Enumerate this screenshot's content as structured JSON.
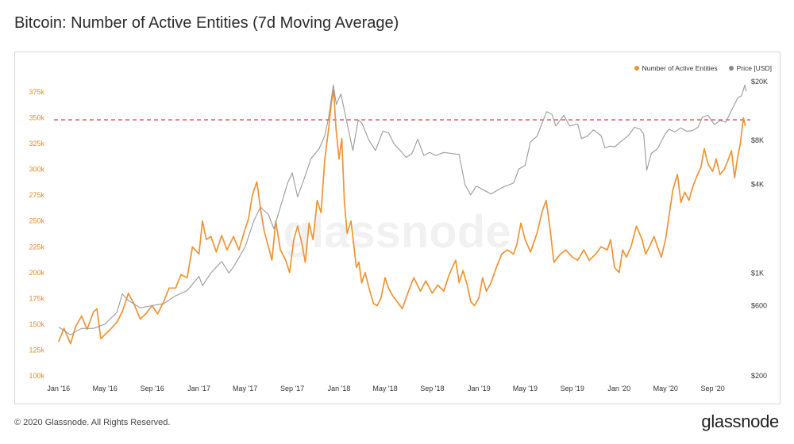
{
  "page": {
    "title": "Bitcoin: Number of Active Entities (7d Moving Average)",
    "footer": "© 2020 Glassnode. All Rights Reserved.",
    "brand": "glassnode",
    "watermark": "glassnode"
  },
  "chart_data": {
    "type": "line",
    "title": "Bitcoin: Number of Active Entities (7d Moving Average)",
    "x_ticks": [
      "Jan '16",
      "May '16",
      "Sep '16",
      "Jan '17",
      "May '17",
      "Sep '17",
      "Jan '18",
      "May '18",
      "Sep '18",
      "Jan '19",
      "May '19",
      "Sep '19",
      "Jan '20",
      "May '20",
      "Sep '20"
    ],
    "y_left": {
      "ticks": [
        "100k",
        "125k",
        "150k",
        "175k",
        "200k",
        "225k",
        "250k",
        "275k",
        "300k",
        "325k",
        "350k",
        "375k"
      ],
      "range": [
        100000,
        375000
      ],
      "color": "#e38b2c"
    },
    "y_right": {
      "scale": "log",
      "ticks": [
        "$200",
        "$600",
        "$1K",
        "$4K",
        "$8K",
        "$20K"
      ],
      "tick_values": [
        200,
        600,
        1000,
        4000,
        8000,
        20000
      ],
      "range": [
        200,
        20000
      ],
      "color": "#333333"
    },
    "reference_line": {
      "value": 348000,
      "color": "#e0263b",
      "style": "dashed"
    },
    "legend": {
      "position": "top-right"
    },
    "series": [
      {
        "name": "Number of Active Entities",
        "axis": "left",
        "color": "#f09433",
        "points": [
          [
            "2016-01-01",
            133000
          ],
          [
            "2016-01-15",
            146000
          ],
          [
            "2016-02-01",
            131000
          ],
          [
            "2016-02-15",
            148000
          ],
          [
            "2016-03-01",
            158000
          ],
          [
            "2016-03-15",
            145000
          ],
          [
            "2016-04-01",
            162000
          ],
          [
            "2016-04-10",
            165000
          ],
          [
            "2016-04-20",
            136000
          ],
          [
            "2016-05-01",
            140000
          ],
          [
            "2016-05-15",
            145000
          ],
          [
            "2016-06-01",
            152000
          ],
          [
            "2016-06-15",
            162000
          ],
          [
            "2016-07-01",
            180000
          ],
          [
            "2016-07-15",
            170000
          ],
          [
            "2016-08-01",
            155000
          ],
          [
            "2016-08-15",
            160000
          ],
          [
            "2016-09-01",
            168000
          ],
          [
            "2016-09-15",
            160000
          ],
          [
            "2016-10-01",
            172000
          ],
          [
            "2016-10-15",
            185000
          ],
          [
            "2016-11-01",
            185000
          ],
          [
            "2016-11-15",
            198000
          ],
          [
            "2016-12-01",
            195000
          ],
          [
            "2016-12-15",
            225000
          ],
          [
            "2017-01-01",
            218000
          ],
          [
            "2017-01-10",
            250000
          ],
          [
            "2017-01-20",
            232000
          ],
          [
            "2017-02-01",
            235000
          ],
          [
            "2017-02-15",
            220000
          ],
          [
            "2017-03-01",
            236000
          ],
          [
            "2017-03-15",
            222000
          ],
          [
            "2017-04-01",
            235000
          ],
          [
            "2017-04-15",
            222000
          ],
          [
            "2017-05-01",
            242000
          ],
          [
            "2017-05-10",
            252000
          ],
          [
            "2017-05-20",
            275000
          ],
          [
            "2017-06-01",
            288000
          ],
          [
            "2017-06-10",
            262000
          ],
          [
            "2017-06-20",
            240000
          ],
          [
            "2017-07-01",
            225000
          ],
          [
            "2017-07-10",
            212000
          ],
          [
            "2017-07-20",
            250000
          ],
          [
            "2017-08-01",
            222000
          ],
          [
            "2017-08-15",
            212000
          ],
          [
            "2017-08-25",
            200000
          ],
          [
            "2017-09-05",
            232000
          ],
          [
            "2017-09-15",
            245000
          ],
          [
            "2017-09-25",
            230000
          ],
          [
            "2017-10-05",
            210000
          ],
          [
            "2017-10-15",
            248000
          ],
          [
            "2017-10-25",
            232000
          ],
          [
            "2017-11-05",
            270000
          ],
          [
            "2017-11-15",
            258000
          ],
          [
            "2017-11-25",
            310000
          ],
          [
            "2017-12-05",
            340000
          ],
          [
            "2017-12-12",
            365000
          ],
          [
            "2017-12-18",
            377000
          ],
          [
            "2017-12-24",
            340000
          ],
          [
            "2018-01-01",
            310000
          ],
          [
            "2018-01-08",
            330000
          ],
          [
            "2018-01-15",
            268000
          ],
          [
            "2018-01-22",
            238000
          ],
          [
            "2018-02-01",
            250000
          ],
          [
            "2018-02-08",
            228000
          ],
          [
            "2018-02-15",
            205000
          ],
          [
            "2018-02-22",
            210000
          ],
          [
            "2018-03-01",
            190000
          ],
          [
            "2018-03-10",
            200000
          ],
          [
            "2018-03-20",
            185000
          ],
          [
            "2018-04-01",
            170000
          ],
          [
            "2018-04-10",
            168000
          ],
          [
            "2018-04-20",
            175000
          ],
          [
            "2018-05-01",
            195000
          ],
          [
            "2018-05-10",
            185000
          ],
          [
            "2018-05-20",
            178000
          ],
          [
            "2018-06-01",
            172000
          ],
          [
            "2018-06-15",
            165000
          ],
          [
            "2018-07-01",
            182000
          ],
          [
            "2018-07-15",
            195000
          ],
          [
            "2018-08-01",
            182000
          ],
          [
            "2018-08-15",
            192000
          ],
          [
            "2018-09-01",
            180000
          ],
          [
            "2018-09-15",
            188000
          ],
          [
            "2018-10-01",
            182000
          ],
          [
            "2018-10-15",
            198000
          ],
          [
            "2018-11-01",
            212000
          ],
          [
            "2018-11-10",
            190000
          ],
          [
            "2018-11-20",
            202000
          ],
          [
            "2018-12-01",
            188000
          ],
          [
            "2018-12-10",
            172000
          ],
          [
            "2018-12-20",
            168000
          ],
          [
            "2019-01-01",
            176000
          ],
          [
            "2019-01-10",
            195000
          ],
          [
            "2019-01-20",
            182000
          ],
          [
            "2019-02-01",
            190000
          ],
          [
            "2019-02-15",
            205000
          ],
          [
            "2019-03-01",
            218000
          ],
          [
            "2019-03-15",
            222000
          ],
          [
            "2019-04-01",
            218000
          ],
          [
            "2019-04-10",
            228000
          ],
          [
            "2019-04-20",
            248000
          ],
          [
            "2019-05-01",
            232000
          ],
          [
            "2019-05-15",
            220000
          ],
          [
            "2019-06-01",
            238000
          ],
          [
            "2019-06-15",
            260000
          ],
          [
            "2019-06-25",
            270000
          ],
          [
            "2019-07-05",
            242000
          ],
          [
            "2019-07-15",
            210000
          ],
          [
            "2019-08-01",
            218000
          ],
          [
            "2019-08-15",
            222000
          ],
          [
            "2019-09-01",
            215000
          ],
          [
            "2019-09-15",
            212000
          ],
          [
            "2019-10-01",
            222000
          ],
          [
            "2019-10-15",
            212000
          ],
          [
            "2019-11-01",
            218000
          ],
          [
            "2019-11-15",
            225000
          ],
          [
            "2019-12-01",
            222000
          ],
          [
            "2019-12-10",
            232000
          ],
          [
            "2019-12-20",
            205000
          ],
          [
            "2020-01-01",
            200000
          ],
          [
            "2020-01-10",
            222000
          ],
          [
            "2020-01-20",
            215000
          ],
          [
            "2020-02-01",
            225000
          ],
          [
            "2020-02-15",
            245000
          ],
          [
            "2020-03-01",
            232000
          ],
          [
            "2020-03-10",
            218000
          ],
          [
            "2020-03-20",
            225000
          ],
          [
            "2020-04-01",
            235000
          ],
          [
            "2020-04-10",
            225000
          ],
          [
            "2020-04-20",
            215000
          ],
          [
            "2020-05-01",
            232000
          ],
          [
            "2020-05-10",
            255000
          ],
          [
            "2020-05-20",
            280000
          ],
          [
            "2020-06-01",
            295000
          ],
          [
            "2020-06-10",
            268000
          ],
          [
            "2020-06-20",
            278000
          ],
          [
            "2020-07-01",
            270000
          ],
          [
            "2020-07-10",
            282000
          ],
          [
            "2020-07-20",
            292000
          ],
          [
            "2020-08-01",
            302000
          ],
          [
            "2020-08-10",
            320000
          ],
          [
            "2020-08-20",
            305000
          ],
          [
            "2020-09-01",
            298000
          ],
          [
            "2020-09-10",
            310000
          ],
          [
            "2020-09-20",
            295000
          ],
          [
            "2020-10-01",
            300000
          ],
          [
            "2020-10-10",
            308000
          ],
          [
            "2020-10-20",
            318000
          ],
          [
            "2020-10-28",
            292000
          ],
          [
            "2020-11-05",
            312000
          ],
          [
            "2020-11-12",
            325000
          ],
          [
            "2020-11-20",
            350000
          ],
          [
            "2020-11-25",
            342000
          ]
        ]
      },
      {
        "name": "Price [USD]",
        "axis": "right",
        "color": "#9a9a9a",
        "points": [
          [
            "2016-01-01",
            430
          ],
          [
            "2016-02-01",
            380
          ],
          [
            "2016-02-15",
            400
          ],
          [
            "2016-03-01",
            420
          ],
          [
            "2016-04-01",
            420
          ],
          [
            "2016-05-01",
            450
          ],
          [
            "2016-06-01",
            540
          ],
          [
            "2016-06-15",
            720
          ],
          [
            "2016-07-01",
            650
          ],
          [
            "2016-08-01",
            580
          ],
          [
            "2016-09-01",
            600
          ],
          [
            "2016-10-01",
            620
          ],
          [
            "2016-11-01",
            700
          ],
          [
            "2016-12-01",
            760
          ],
          [
            "2017-01-01",
            950
          ],
          [
            "2017-01-10",
            820
          ],
          [
            "2017-02-01",
            1000
          ],
          [
            "2017-03-01",
            1200
          ],
          [
            "2017-03-20",
            1000
          ],
          [
            "2017-04-01",
            1100
          ],
          [
            "2017-05-01",
            1500
          ],
          [
            "2017-05-25",
            2300
          ],
          [
            "2017-06-10",
            2800
          ],
          [
            "2017-07-01",
            2500
          ],
          [
            "2017-07-15",
            2000
          ],
          [
            "2017-08-01",
            2800
          ],
          [
            "2017-08-20",
            4100
          ],
          [
            "2017-09-01",
            4800
          ],
          [
            "2017-09-15",
            3300
          ],
          [
            "2017-10-01",
            4300
          ],
          [
            "2017-10-20",
            6000
          ],
          [
            "2017-11-10",
            7000
          ],
          [
            "2017-11-25",
            8600
          ],
          [
            "2017-12-05",
            11500
          ],
          [
            "2017-12-17",
            19000
          ],
          [
            "2017-12-25",
            14000
          ],
          [
            "2018-01-06",
            16500
          ],
          [
            "2018-01-20",
            11000
          ],
          [
            "2018-02-06",
            6800
          ],
          [
            "2018-02-20",
            11000
          ],
          [
            "2018-03-01",
            10500
          ],
          [
            "2018-03-20",
            8000
          ],
          [
            "2018-04-06",
            6800
          ],
          [
            "2018-04-25",
            9200
          ],
          [
            "2018-05-10",
            9000
          ],
          [
            "2018-05-25",
            7500
          ],
          [
            "2018-06-10",
            6800
          ],
          [
            "2018-06-25",
            6100
          ],
          [
            "2018-07-10",
            6500
          ],
          [
            "2018-07-25",
            8100
          ],
          [
            "2018-08-10",
            6300
          ],
          [
            "2018-08-25",
            6600
          ],
          [
            "2018-09-10",
            6300
          ],
          [
            "2018-10-01",
            6600
          ],
          [
            "2018-10-20",
            6500
          ],
          [
            "2018-11-10",
            6400
          ],
          [
            "2018-11-25",
            4000
          ],
          [
            "2018-12-10",
            3400
          ],
          [
            "2018-12-25",
            3900
          ],
          [
            "2019-01-10",
            3700
          ],
          [
            "2019-02-01",
            3450
          ],
          [
            "2019-03-01",
            3800
          ],
          [
            "2019-04-01",
            4100
          ],
          [
            "2019-04-15",
            5100
          ],
          [
            "2019-05-01",
            5400
          ],
          [
            "2019-05-15",
            7800
          ],
          [
            "2019-06-01",
            8500
          ],
          [
            "2019-06-26",
            12500
          ],
          [
            "2019-07-10",
            12000
          ],
          [
            "2019-07-20",
            10000
          ],
          [
            "2019-08-10",
            11800
          ],
          [
            "2019-08-25",
            10000
          ],
          [
            "2019-09-15",
            10300
          ],
          [
            "2019-09-25",
            8200
          ],
          [
            "2019-10-10",
            8500
          ],
          [
            "2019-10-26",
            9400
          ],
          [
            "2019-11-15",
            8600
          ],
          [
            "2019-11-25",
            7100
          ],
          [
            "2019-12-10",
            7300
          ],
          [
            "2019-12-20",
            7200
          ],
          [
            "2020-01-10",
            8000
          ],
          [
            "2020-01-25",
            8600
          ],
          [
            "2020-02-10",
            9800
          ],
          [
            "2020-02-25",
            9500
          ],
          [
            "2020-03-05",
            8800
          ],
          [
            "2020-03-13",
            5000
          ],
          [
            "2020-03-25",
            6500
          ],
          [
            "2020-04-10",
            7000
          ],
          [
            "2020-04-30",
            8800
          ],
          [
            "2020-05-10",
            9500
          ],
          [
            "2020-05-25",
            9100
          ],
          [
            "2020-06-10",
            9700
          ],
          [
            "2020-06-25",
            9200
          ],
          [
            "2020-07-10",
            9300
          ],
          [
            "2020-07-25",
            9800
          ],
          [
            "2020-08-05",
            11500
          ],
          [
            "2020-08-20",
            11800
          ],
          [
            "2020-09-05",
            10200
          ],
          [
            "2020-09-20",
            10900
          ],
          [
            "2020-10-05",
            10600
          ],
          [
            "2020-10-21",
            12900
          ],
          [
            "2020-11-05",
            15500
          ],
          [
            "2020-11-15",
            16000
          ],
          [
            "2020-11-24",
            19000
          ],
          [
            "2020-11-27",
            17200
          ]
        ]
      }
    ]
  }
}
